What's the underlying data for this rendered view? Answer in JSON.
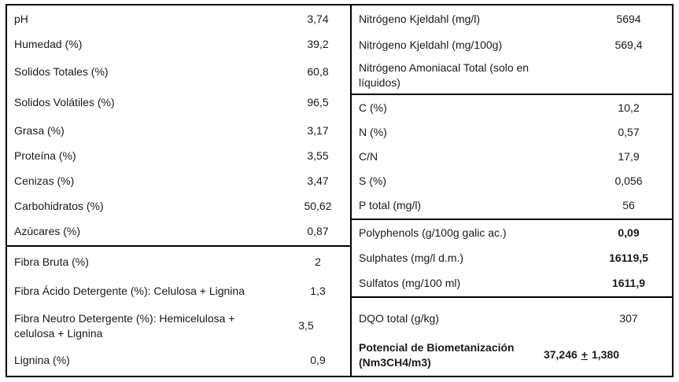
{
  "colors": {
    "border": "#000000",
    "background": "#ffffff",
    "text": "#1a1a1a"
  },
  "left_top": {
    "rows": [
      {
        "label": "pH",
        "value": "3,74"
      },
      {
        "label": "Humedad (%)",
        "value": "39,2"
      },
      {
        "label": "Solidos Totales (%)",
        "value": "60,8"
      },
      {
        "label": "Solidos Volátiles (%)",
        "value": "96,5"
      },
      {
        "label": "Grasa (%)",
        "value": "3,17"
      },
      {
        "label": "Proteína (%)",
        "value": "3,55"
      },
      {
        "label": "Cenizas (%)",
        "value": "3,47"
      },
      {
        "label": "Carbohidratos (%)",
        "value": "50,62"
      },
      {
        "label": "Azúcares (%)",
        "value": "0,87"
      }
    ]
  },
  "left_bottom": {
    "rows": [
      {
        "label": "Fibra Bruta (%)",
        "value": "2"
      },
      {
        "label": "Fibra Ácido Detergente (%): Celulosa + Lignina",
        "value": "1,3"
      },
      {
        "label": "Fibra Neutro Detergente (%): Hemicelulosa + celulosa + Lignina",
        "value": "3,5"
      },
      {
        "label": "Lignina (%)",
        "value": "0,9"
      }
    ]
  },
  "right_nitrogen": {
    "rows": [
      {
        "label": "Nitrógeno Kjeldahl (mg/l)",
        "value": "5694"
      },
      {
        "label": "Nitrógeno Kjeldahl (mg/100g)",
        "value": "569,4"
      },
      {
        "label": "Nitrógeno Amoniacal Total (solo en líquidos)",
        "value": ""
      }
    ]
  },
  "right_elemental": {
    "rows": [
      {
        "label": "C (%)",
        "value": "10,2"
      },
      {
        "label": "N (%)",
        "value": "0,57"
      },
      {
        "label": "C/N",
        "value": "17,9"
      },
      {
        "label": "S (%)",
        "value": "0,056"
      },
      {
        "label": "P total (mg/l)",
        "value": "56"
      }
    ]
  },
  "right_sulfur": {
    "rows": [
      {
        "label": "Polyphenols (g/100g galic ac.)",
        "value": "0,09"
      },
      {
        "label": "Sulphates (mg/l d.m.)",
        "value": "16119,5"
      },
      {
        "label": "Sulfatos (mg/100 ml)",
        "value": "1611,9"
      }
    ]
  },
  "right_bottom": {
    "rows": [
      {
        "label": "DQO total (g/kg)",
        "value": "307"
      },
      {
        "label": "Potencial de Biometanización (Nm3CH4/m3)",
        "value_main": "37,246",
        "value_plus": "+",
        "value_err": "1,380"
      }
    ]
  }
}
